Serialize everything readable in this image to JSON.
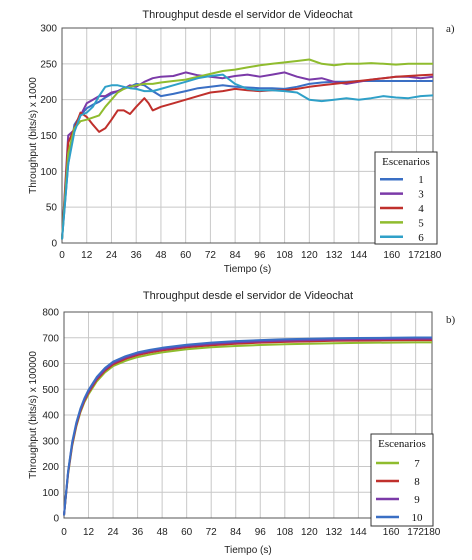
{
  "chart_data": [
    {
      "type": "line",
      "panel_label": "a)",
      "title": "Throughput desde el servidor de Videochat",
      "xlabel": "Tiempo (s)",
      "ylabel": "Throughput (bits/s) x 1000",
      "xlim": [
        0,
        180
      ],
      "ylim": [
        0,
        300
      ],
      "xticks": [
        0,
        12,
        24,
        36,
        48,
        60,
        72,
        84,
        96,
        108,
        120,
        132,
        144,
        160,
        172,
        180
      ],
      "yticks": [
        0,
        50,
        100,
        150,
        200,
        250,
        300
      ],
      "grid": true,
      "legend_title": "Escenarios",
      "legend_position": "right",
      "series": [
        {
          "name": "1",
          "color": "#3a6fc4",
          "x": [
            0,
            3,
            6,
            9,
            12,
            15,
            18,
            21,
            24,
            27,
            30,
            33,
            36,
            40,
            44,
            48,
            54,
            60,
            66,
            72,
            78,
            84,
            90,
            96,
            102,
            108,
            114,
            120,
            126,
            132,
            138,
            144,
            150,
            156,
            162,
            168,
            174,
            180
          ],
          "y": [
            5,
            110,
            165,
            178,
            188,
            193,
            197,
            203,
            208,
            212,
            216,
            218,
            222,
            220,
            212,
            205,
            208,
            212,
            216,
            218,
            220,
            218,
            217,
            216,
            216,
            215,
            218,
            222,
            224,
            225,
            225,
            226,
            226,
            226,
            226,
            226,
            226,
            226
          ]
        },
        {
          "name": "3",
          "color": "#7b3aa8",
          "x": [
            0,
            3,
            6,
            9,
            12,
            15,
            18,
            21,
            24,
            27,
            30,
            33,
            36,
            40,
            44,
            48,
            54,
            60,
            66,
            72,
            78,
            84,
            90,
            96,
            102,
            108,
            114,
            120,
            126,
            132,
            138,
            144,
            150,
            156,
            162,
            168,
            174,
            180
          ],
          "y": [
            5,
            150,
            158,
            178,
            195,
            200,
            205,
            205,
            210,
            212,
            215,
            220,
            218,
            225,
            230,
            232,
            233,
            238,
            234,
            232,
            230,
            233,
            235,
            232,
            235,
            238,
            232,
            228,
            230,
            225,
            222,
            225,
            228,
            230,
            232,
            232,
            230,
            232
          ]
        },
        {
          "name": "4",
          "color": "#c0302c",
          "x": [
            0,
            3,
            6,
            9,
            12,
            15,
            18,
            21,
            24,
            27,
            30,
            33,
            36,
            40,
            42,
            44,
            48,
            54,
            60,
            66,
            72,
            78,
            84,
            90,
            96,
            102,
            108,
            114,
            120,
            126,
            132,
            138,
            144,
            150,
            156,
            162,
            168,
            174,
            180
          ],
          "y": [
            5,
            140,
            160,
            182,
            176,
            165,
            155,
            160,
            172,
            185,
            185,
            180,
            190,
            202,
            195,
            185,
            190,
            195,
            200,
            205,
            210,
            212,
            215,
            213,
            212,
            213,
            213,
            215,
            218,
            220,
            222,
            224,
            226,
            228,
            230,
            232,
            233,
            234,
            235
          ]
        },
        {
          "name": "5",
          "color": "#8fbc2e",
          "x": [
            0,
            3,
            6,
            9,
            12,
            15,
            18,
            21,
            24,
            27,
            30,
            33,
            36,
            40,
            44,
            48,
            54,
            60,
            66,
            72,
            78,
            84,
            90,
            96,
            102,
            108,
            114,
            120,
            126,
            132,
            138,
            144,
            150,
            156,
            162,
            168,
            174,
            180
          ],
          "y": [
            5,
            125,
            160,
            170,
            172,
            175,
            178,
            190,
            200,
            210,
            215,
            218,
            220,
            222,
            222,
            224,
            226,
            228,
            232,
            236,
            240,
            242,
            245,
            248,
            250,
            252,
            254,
            256,
            250,
            248,
            250,
            250,
            251,
            250,
            249,
            250,
            250,
            250
          ]
        },
        {
          "name": "6",
          "color": "#2fa0c8",
          "x": [
            0,
            3,
            6,
            9,
            12,
            15,
            18,
            21,
            24,
            27,
            30,
            33,
            36,
            40,
            44,
            48,
            54,
            60,
            66,
            72,
            78,
            84,
            90,
            96,
            102,
            108,
            114,
            120,
            126,
            132,
            138,
            144,
            150,
            156,
            162,
            168,
            174,
            180
          ],
          "y": [
            5,
            110,
            155,
            178,
            182,
            190,
            205,
            218,
            220,
            220,
            218,
            216,
            215,
            212,
            212,
            215,
            220,
            225,
            230,
            233,
            235,
            222,
            215,
            213,
            213,
            212,
            210,
            200,
            198,
            200,
            202,
            200,
            202,
            205,
            203,
            202,
            205,
            206
          ]
        }
      ]
    },
    {
      "type": "line",
      "panel_label": "b)",
      "title": "Throughput desde el servidor de Videochat",
      "xlabel": "Tiempo (s)",
      "ylabel": "Throughput (bits/s) x 100000",
      "xlim": [
        0,
        180
      ],
      "ylim": [
        0,
        800
      ],
      "xticks": [
        0,
        12,
        24,
        36,
        48,
        60,
        72,
        84,
        96,
        108,
        120,
        132,
        144,
        160,
        172,
        180
      ],
      "yticks": [
        0,
        100,
        200,
        300,
        400,
        500,
        600,
        700,
        800
      ],
      "grid": true,
      "legend_title": "Escenarios",
      "legend_position": "right",
      "series": [
        {
          "name": "7",
          "color": "#8fbc2e",
          "x": [
            0,
            2,
            4,
            6,
            8,
            10,
            12,
            16,
            20,
            24,
            30,
            36,
            42,
            48,
            60,
            72,
            84,
            96,
            108,
            120,
            132,
            144,
            160,
            172,
            180
          ],
          "y": [
            10,
            170,
            280,
            355,
            410,
            450,
            480,
            530,
            565,
            590,
            610,
            625,
            635,
            643,
            655,
            663,
            668,
            672,
            675,
            677,
            679,
            680,
            681,
            682,
            682
          ]
        },
        {
          "name": "8",
          "color": "#c0302c",
          "x": [
            0,
            2,
            4,
            6,
            8,
            10,
            12,
            16,
            20,
            24,
            30,
            36,
            42,
            48,
            60,
            72,
            84,
            96,
            108,
            120,
            132,
            144,
            160,
            172,
            180
          ],
          "y": [
            10,
            175,
            285,
            360,
            415,
            455,
            487,
            537,
            572,
            597,
            618,
            633,
            643,
            651,
            663,
            671,
            677,
            681,
            684,
            686,
            688,
            689,
            690,
            691,
            691
          ]
        },
        {
          "name": "9",
          "color": "#7b3aa8",
          "x": [
            0,
            2,
            4,
            6,
            8,
            10,
            12,
            16,
            20,
            24,
            30,
            36,
            42,
            48,
            60,
            72,
            84,
            96,
            108,
            120,
            132,
            144,
            160,
            172,
            180
          ],
          "y": [
            10,
            178,
            290,
            365,
            420,
            460,
            492,
            542,
            577,
            602,
            623,
            638,
            648,
            656,
            668,
            676,
            682,
            686,
            689,
            691,
            693,
            694,
            695,
            696,
            696
          ]
        },
        {
          "name": "10",
          "color": "#3a6fc4",
          "x": [
            0,
            2,
            4,
            6,
            8,
            10,
            12,
            16,
            20,
            24,
            30,
            36,
            42,
            48,
            60,
            72,
            84,
            96,
            108,
            120,
            132,
            144,
            160,
            172,
            180
          ],
          "y": [
            10,
            182,
            295,
            370,
            425,
            465,
            497,
            547,
            582,
            607,
            628,
            643,
            653,
            661,
            673,
            681,
            687,
            691,
            694,
            696,
            698,
            699,
            700,
            701,
            701
          ]
        }
      ]
    }
  ]
}
